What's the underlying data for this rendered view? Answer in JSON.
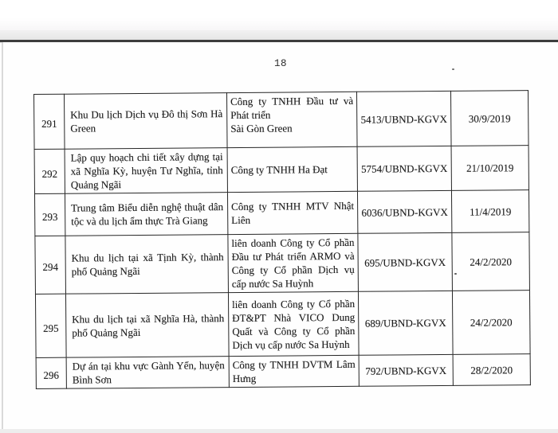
{
  "page": {
    "number": "18"
  },
  "colors": {
    "paper": "#ffffff",
    "scanner_band": "#e8e8e8",
    "scanner_edge_line": "#3d3d3d",
    "table_border": "#262626",
    "text": "#1d1d1d"
  },
  "table": {
    "rows": [
      {
        "no": "291",
        "project": "Khu Du lịch Dịch vụ Đô thị Sơn Hà Green",
        "investor": "Công ty TNHH Đầu tư và Phát triển\nSài Gòn Green",
        "doc_no": "5413/UBND-KGVX",
        "date": "30/9/2019"
      },
      {
        "no": "292",
        "project": "Lập quy hoạch chi tiết xây dựng tại xã Nghĩa Kỳ, huyện Tư Nghĩa, tỉnh Quảng Ngãi",
        "investor": "Công ty TNHH Ha Đạt",
        "doc_no": "5754/UBND-KGVX",
        "date": "21/10/2019"
      },
      {
        "no": "293",
        "project": "Trung tâm Biểu diễn nghệ thuật dân tộc và du lịch ẩm thực Trà Giang",
        "investor": "Công ty TNHH MTV Nhật Liên",
        "doc_no": "6036/UBND-KGVX",
        "date": "11/4/2019"
      },
      {
        "no": "294",
        "project": "Khu du lịch tại xã Tịnh Kỳ, thành phố Quảng Ngãi",
        "investor": "liên doanh Công ty Cổ phần Đầu tư Phát triển ARMO và Công ty Cổ phần Dịch vụ cấp nước Sa Huỳnh",
        "doc_no": "695/UBND-KGVX",
        "date": "24/2/2020"
      },
      {
        "no": "295",
        "project": "Khu du lịch tại xã Nghĩa Hà, thành phố Quảng Ngãi",
        "investor": "liên doanh Công ty Cổ phần ĐT&PT Nhà VICO Dung Quất và Công ty Cổ phần Dịch vụ cấp nước Sa Huỳnh",
        "doc_no": "689/UBND-KGVX",
        "date": "24/2/2020"
      },
      {
        "no": "296",
        "project": "Dự án tại khu vực Gành Yến, huyện Bình Sơn",
        "investor": "Công ty TNHH DVTM Lâm Hưng",
        "doc_no": "792/UBND-KGVX",
        "date": "28/2/2020"
      }
    ]
  }
}
